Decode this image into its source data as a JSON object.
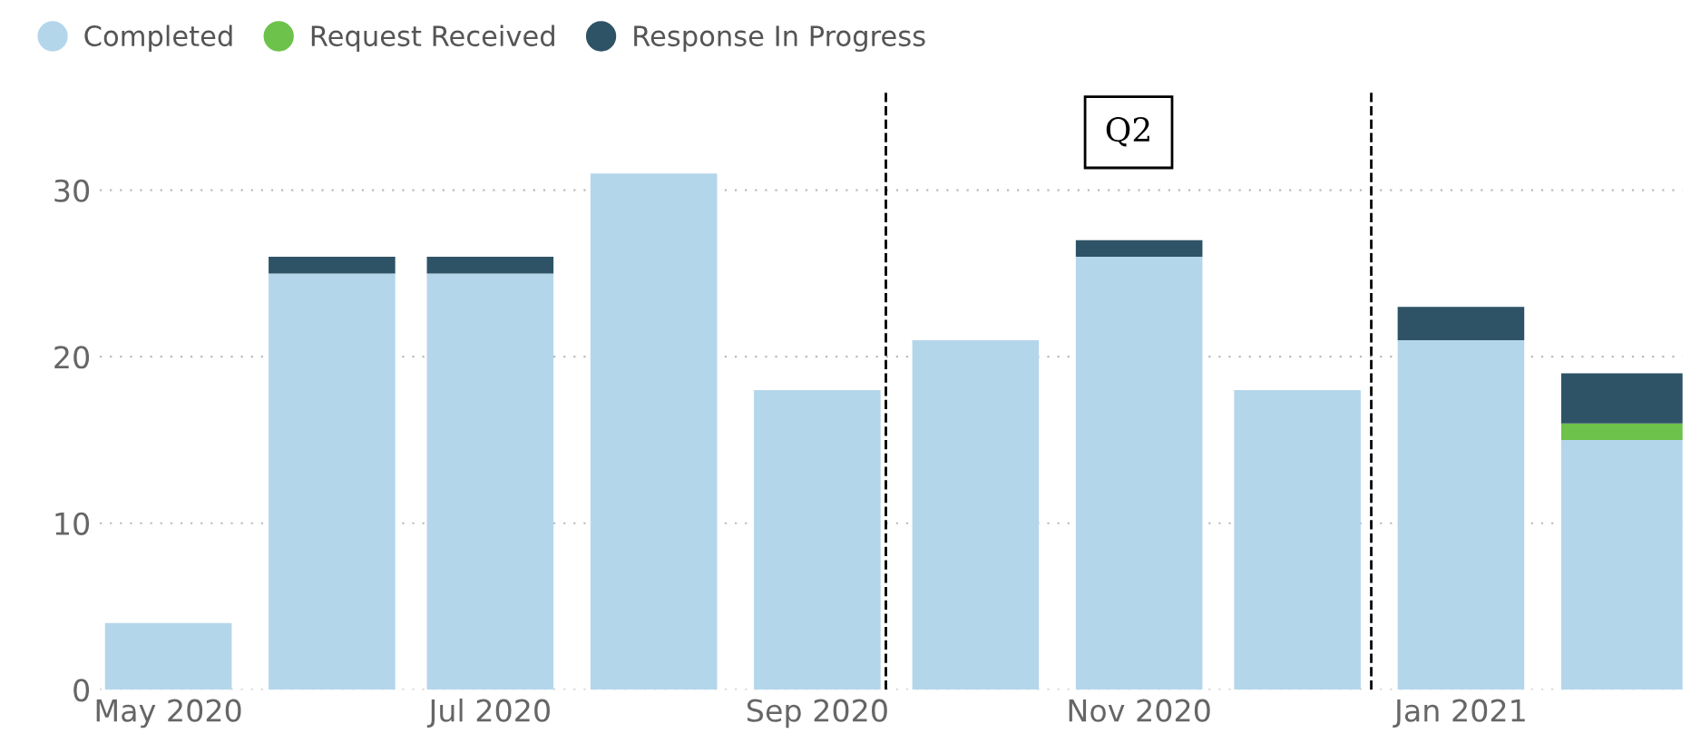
{
  "chart_data": {
    "type": "bar",
    "stacked": true,
    "x": [
      "2020-05",
      "2020-06",
      "2020-07",
      "2020-08",
      "2020-09",
      "2020-10",
      "2020-11",
      "2020-12",
      "2021-01",
      "2021-02"
    ],
    "series": [
      {
        "name": "Completed",
        "color": "#b4d6ea",
        "values": [
          4,
          25,
          25,
          31,
          18,
          21,
          26,
          18,
          21,
          15
        ]
      },
      {
        "name": "Request Received",
        "color": "#6cc24a",
        "values": [
          0,
          0,
          0,
          0,
          0,
          0,
          0,
          0,
          0,
          1
        ]
      },
      {
        "name": "Response In Progress",
        "color": "#2e5366",
        "values": [
          0,
          1,
          1,
          0,
          0,
          0,
          1,
          0,
          2,
          3
        ]
      }
    ],
    "xlim": [
      "2020-04-18",
      "2021-02-12"
    ],
    "xticks": [
      {
        "value": "2020-05",
        "label": "May 2020"
      },
      {
        "value": "2020-07",
        "label": "Jul 2020"
      },
      {
        "value": "2020-09",
        "label": "Sep 2020"
      },
      {
        "value": "2020-11",
        "label": "Nov 2020"
      },
      {
        "value": "2021-01",
        "label": "Jan 2021"
      }
    ],
    "ylim": [
      0,
      36
    ],
    "yticks": [
      0,
      10,
      20,
      30
    ],
    "ref_lines": [
      {
        "axis": "x",
        "value": "2020-09-14",
        "color": "#000000",
        "line_style": "dashed"
      },
      {
        "axis": "x",
        "value": "2020-12-15",
        "color": "#000000",
        "line_style": "dashed"
      }
    ],
    "annotations": [
      "Q2"
    ],
    "grid": "y",
    "legend": "top left",
    "marker": "circle"
  }
}
